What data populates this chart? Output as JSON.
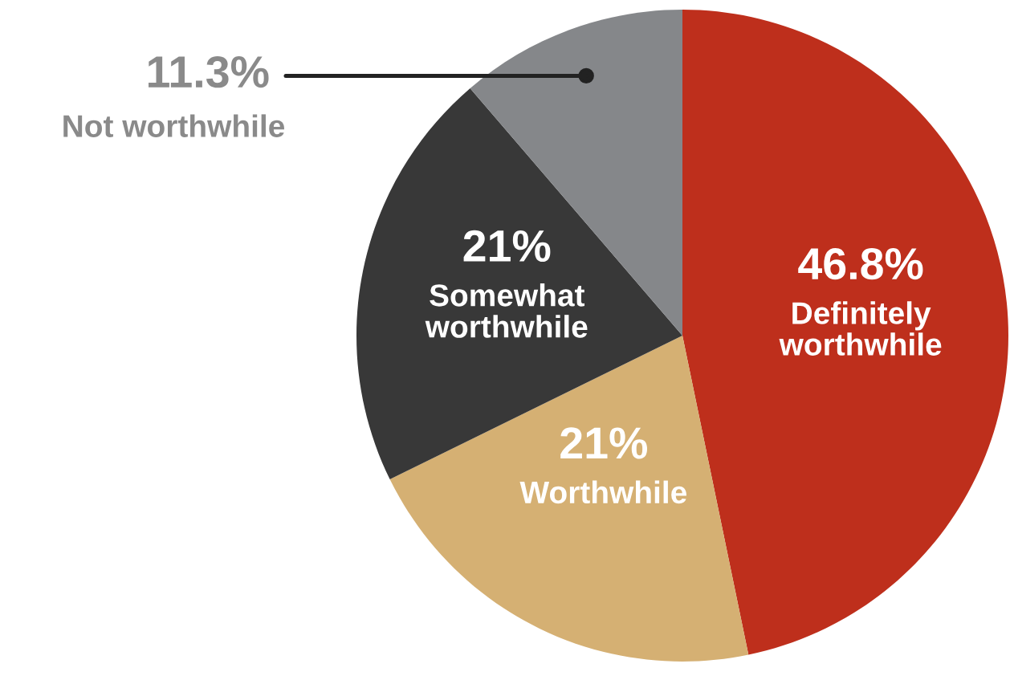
{
  "chart_data": {
    "type": "pie",
    "categories": [
      "Definitely\nworthwhile",
      "Worthwhile",
      "Somewhat\nworthwhile",
      "Not worthwhile"
    ],
    "values": [
      46.8,
      21,
      21,
      11.3
    ],
    "value_labels": [
      "46.8%",
      "21%",
      "21%",
      "11.3%"
    ],
    "colors": [
      "#be2f1c",
      "#d5b073",
      "#383838",
      "#85878a"
    ],
    "legend": false
  }
}
